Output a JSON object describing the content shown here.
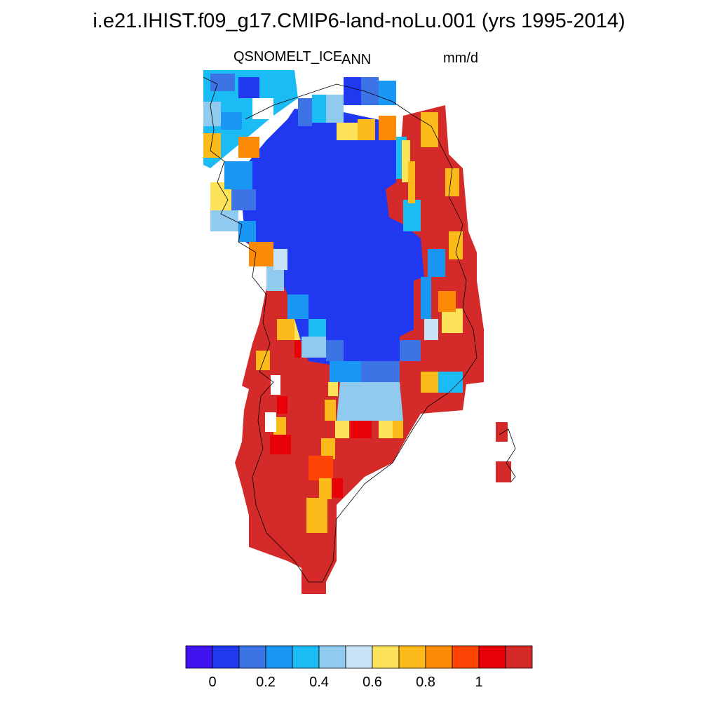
{
  "title": "i.e21.IHIST.f09_g17.CMIP6-land-noLu.001 (yrs 1995-2014)",
  "variable": "QSNOMELT_ICE",
  "season": "ANN",
  "units": "mm/d",
  "colorbar": {
    "colors": [
      "#3f14f0",
      "#1f38f0",
      "#3c74e6",
      "#1a96f5",
      "#1bbcf5",
      "#90caee",
      "#c7e4f7",
      "#fde35a",
      "#fcbb1a",
      "#fd8a06",
      "#fd4404",
      "#e80009",
      "#d42a2a"
    ],
    "tick_labels": [
      "0",
      "0.2",
      "0.4",
      "0.6",
      "0.8",
      "1"
    ]
  }
}
